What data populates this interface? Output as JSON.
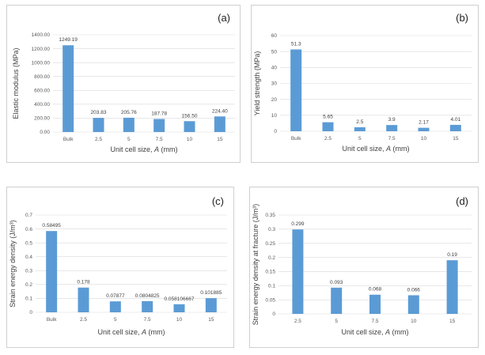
{
  "chart_data": [
    {
      "type": "bar",
      "panel_label": "(a)",
      "categories": [
        "Bulk",
        "2.5",
        "5",
        "7.5",
        "10",
        "15"
      ],
      "values": [
        1249.19,
        203.83,
        205.76,
        187.78,
        156.5,
        224.4
      ],
      "data_labels": [
        "1249.19",
        "203.83",
        "205.76",
        "187.78",
        "156.50",
        "224.40"
      ],
      "ylabel": "Elastic modulus (MPa)",
      "xlabel_prefix": "Unit cell size, ",
      "xlabel_var": "A",
      "xlabel_suffix": " (mm)",
      "ylim": [
        0,
        1400
      ],
      "yticks": [
        0,
        200,
        400,
        600,
        800,
        1000,
        1200,
        1400
      ],
      "ytick_labels": [
        "0.00",
        "200.00",
        "400.00",
        "600.00",
        "800.00",
        "1000.00",
        "1200.00",
        "1400.00"
      ],
      "grid": true
    },
    {
      "type": "bar",
      "panel_label": "(b)",
      "categories": [
        "Bulk",
        "2.5",
        "5",
        "7.5",
        "10",
        "15"
      ],
      "values": [
        51.3,
        5.65,
        2.5,
        3.9,
        2.17,
        4.01
      ],
      "data_labels": [
        "51.3",
        "5.65",
        "2.5",
        "3.9",
        "2.17",
        "4.01"
      ],
      "ylabel": "Yield strength (MPa)",
      "xlabel_prefix": "Unit cell size, ",
      "xlabel_var": "A",
      "xlabel_suffix": " (mm)",
      "ylim": [
        0,
        60
      ],
      "yticks": [
        0,
        10,
        20,
        30,
        40,
        50,
        60
      ],
      "ytick_labels": [
        "0",
        "10",
        "20",
        "30",
        "40",
        "50",
        "60"
      ],
      "grid": true
    },
    {
      "type": "bar",
      "panel_label": "(c)",
      "categories": [
        "Bulk",
        "2.5",
        "5",
        "7.5",
        "10",
        "15"
      ],
      "values": [
        0.58495,
        0.178,
        0.07877,
        0.0804825,
        0.058106667,
        0.101885
      ],
      "data_labels": [
        "0.58495",
        "0.178",
        "0.07877",
        "0.0804825",
        "0.058106667",
        "0.101885"
      ],
      "ylabel": "Strain energy density (J/m³)",
      "xlabel_prefix": "Unit cell size, ",
      "xlabel_var": "A",
      "xlabel_suffix": " (mm)",
      "ylim": [
        0,
        0.7
      ],
      "yticks": [
        0,
        0.1,
        0.2,
        0.3,
        0.4,
        0.5,
        0.6,
        0.7
      ],
      "ytick_labels": [
        "0",
        "0.1",
        "0.2",
        "0.3",
        "0.4",
        "0.5",
        "0.6",
        "0.7"
      ],
      "grid": true
    },
    {
      "type": "bar",
      "panel_label": "(d)",
      "categories": [
        "2.5",
        "5",
        "7.5",
        "10",
        "15"
      ],
      "values": [
        0.299,
        0.093,
        0.068,
        0.066,
        0.19
      ],
      "data_labels": [
        "0.299",
        "0.093",
        "0.068",
        "0.066",
        "0.19"
      ],
      "ylabel": "Strain energy density at fracture (J/m³)",
      "xlabel_prefix": "Unit cell size, ",
      "xlabel_var": "A",
      "xlabel_suffix": " (mm)",
      "ylim": [
        0,
        0.35
      ],
      "yticks": [
        0,
        0.05,
        0.1,
        0.15,
        0.2,
        0.25,
        0.3,
        0.35
      ],
      "ytick_labels": [
        "0",
        "0.05",
        "0.1",
        "0.15",
        "0.2",
        "0.25",
        "0.3",
        "0.35"
      ],
      "grid": true
    }
  ]
}
